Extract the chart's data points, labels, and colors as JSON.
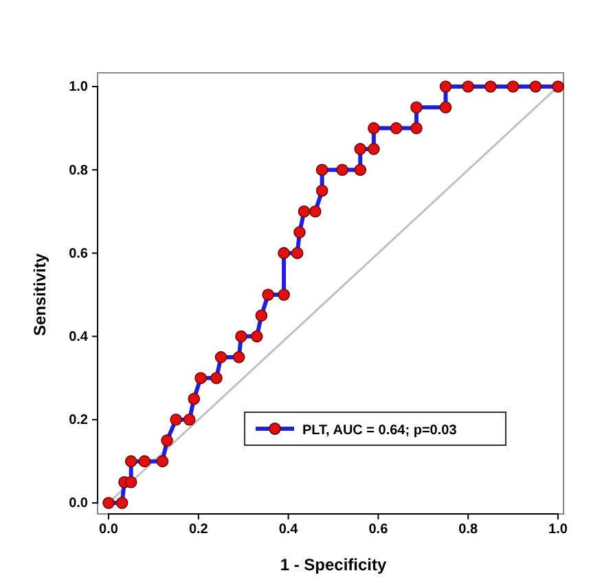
{
  "chart_data": {
    "type": "line",
    "xlabel": "1 - Specificity",
    "ylabel": "Sensitivity",
    "xlim": [
      0,
      1
    ],
    "ylim": [
      0,
      1
    ],
    "xticks": [
      {
        "value": 0,
        "label": "0.0"
      },
      {
        "value": 0.2,
        "label": "0.2"
      },
      {
        "value": 0.4,
        "label": "0.4"
      },
      {
        "value": 0.6,
        "label": "0.6"
      },
      {
        "value": 0.8,
        "label": "0.8"
      },
      {
        "value": 1,
        "label": "1.0"
      }
    ],
    "yticks": [
      {
        "value": 0,
        "label": "0.0"
      },
      {
        "value": 0.2,
        "label": "0.2"
      },
      {
        "value": 0.4,
        "label": "0.4"
      },
      {
        "value": 0.6,
        "label": "0.6"
      },
      {
        "value": 0.8,
        "label": "0.8"
      },
      {
        "value": 1,
        "label": "1.0"
      }
    ],
    "grid": false,
    "legend": "bottom right",
    "series": [
      {
        "name": "PLT, AUC = 0.64; p=0.03",
        "color": "#1f1fdd",
        "marker": "circle",
        "x": [
          0,
          0.03,
          0.035,
          0.05,
          0.05,
          0.08,
          0.12,
          0.13,
          0.15,
          0.18,
          0.19,
          0.205,
          0.24,
          0.25,
          0.29,
          0.295,
          0.33,
          0.34,
          0.355,
          0.39,
          0.39,
          0.42,
          0.425,
          0.435,
          0.46,
          0.475,
          0.475,
          0.52,
          0.56,
          0.56,
          0.59,
          0.59,
          0.64,
          0.685,
          0.685,
          0.75,
          0.75,
          0.8,
          0.85,
          0.9,
          0.95,
          1
        ],
        "values": [
          0,
          0,
          0.05,
          0.05,
          0.1,
          0.1,
          0.1,
          0.15,
          0.2,
          0.2,
          0.25,
          0.3,
          0.3,
          0.35,
          0.35,
          0.4,
          0.4,
          0.45,
          0.5,
          0.5,
          0.6,
          0.6,
          0.65,
          0.7,
          0.7,
          0.75,
          0.8,
          0.8,
          0.8,
          0.85,
          0.85,
          0.9,
          0.9,
          0.9,
          0.95,
          0.95,
          1,
          1,
          1,
          1,
          1,
          1
        ]
      },
      {
        "color": "#c0c0c0",
        "marker": "none",
        "x": [
          0,
          1
        ],
        "values": [
          0,
          1
        ]
      }
    ]
  }
}
